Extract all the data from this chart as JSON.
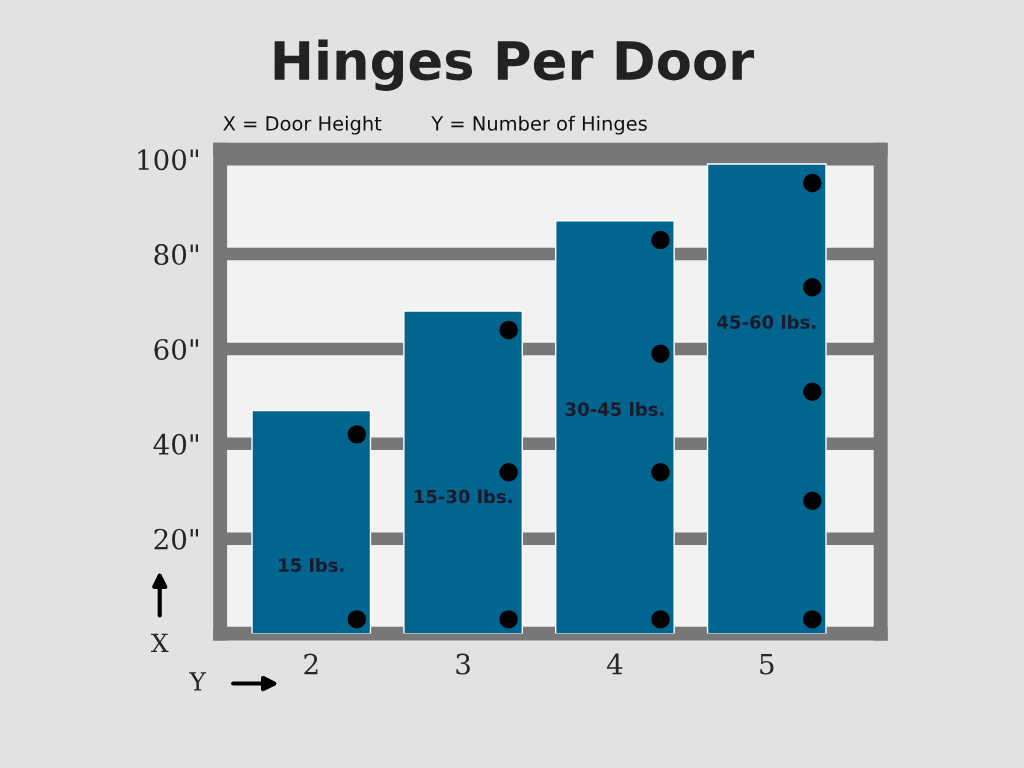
{
  "chart_data": {
    "type": "bar",
    "title": "Hinges Per Door",
    "subtitle": "X = Door Height        Y = Number of Hinges",
    "xlabel": "Y",
    "ylabel": "X",
    "categories": [
      "2",
      "3",
      "4",
      "5"
    ],
    "series": [
      {
        "color": "#00658f",
        "values": [
          47,
          68,
          87,
          99
        ]
      },
      {
        "type": "scatter",
        "color": "#000000",
        "x": [
          "2",
          "2",
          "3",
          "3",
          "3",
          "4",
          "4",
          "4",
          "4",
          "5",
          "5",
          "5",
          "5",
          "5"
        ],
        "values": [
          42,
          3,
          64,
          34,
          3,
          83,
          59,
          34,
          3,
          95,
          73,
          51,
          28,
          3
        ]
      }
    ],
    "annotations": [
      "15 lbs.",
      "15-30 lbs.",
      "30-45 lbs.",
      "45-60 lbs."
    ],
    "ylim": [
      0,
      102
    ],
    "yticks": [
      {
        "value": 20,
        "label": "20\""
      },
      {
        "value": 40,
        "label": "40\""
      },
      {
        "value": 60,
        "label": "60\""
      },
      {
        "value": 80,
        "label": "80\""
      },
      {
        "value": 100,
        "label": "100\""
      }
    ],
    "grid": "y",
    "marker": "circle"
  }
}
